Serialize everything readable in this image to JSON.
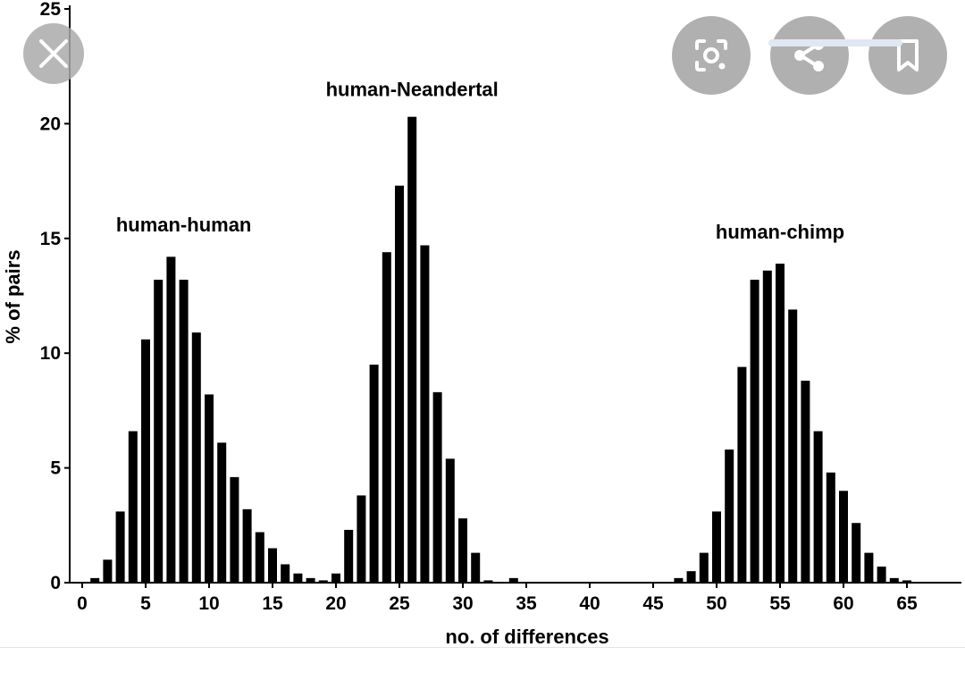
{
  "viewer": {
    "close_icon": "close-icon",
    "lens_icon": "lens-search-icon",
    "share_icon": "share-icon",
    "bookmark_icon": "bookmark-icon",
    "button_color": "#9a9a9a"
  },
  "chart_data": {
    "type": "bar",
    "title": "",
    "xlabel": "no. of differences",
    "ylabel": "% of pairs",
    "xlim": [
      -0.5,
      69.5
    ],
    "ylim": [
      0,
      25
    ],
    "xticks": [
      "0",
      "5",
      "10",
      "15",
      "20",
      "25",
      "30",
      "35",
      "40",
      "45",
      "50",
      "55",
      "60",
      "65"
    ],
    "yticks": [
      "0",
      "5",
      "10",
      "15",
      "20",
      "25"
    ],
    "grid": false,
    "bar_color": "#000000",
    "annotations": [
      {
        "text": "human-human",
        "x": 8,
        "y": 15.3
      },
      {
        "text": "human-Neandertal",
        "x": 26,
        "y": 21.2
      },
      {
        "text": "human-chimp",
        "x": 55,
        "y": 15.0
      }
    ],
    "series": [
      {
        "name": "human-human",
        "x": [
          1,
          2,
          3,
          4,
          5,
          6,
          7,
          8,
          9,
          10,
          11,
          12,
          13,
          14,
          15,
          16,
          17,
          18,
          19,
          20
        ],
        "values": [
          0.2,
          1.0,
          3.1,
          6.6,
          10.6,
          13.2,
          14.2,
          13.2,
          10.9,
          8.2,
          6.1,
          4.6,
          3.2,
          2.2,
          1.5,
          0.8,
          0.4,
          0.2,
          0.1,
          0.4
        ]
      },
      {
        "name": "human-Neandertal",
        "x": [
          21,
          22,
          23,
          24,
          25,
          26,
          27,
          28,
          29,
          30,
          31,
          32,
          34
        ],
        "values": [
          2.3,
          3.8,
          9.5,
          14.4,
          17.3,
          20.3,
          14.7,
          8.3,
          5.4,
          2.8,
          1.3,
          0.1,
          0.2
        ]
      },
      {
        "name": "human-chimp",
        "x": [
          47,
          48,
          49,
          50,
          51,
          52,
          53,
          54,
          55,
          56,
          57,
          58,
          59,
          60,
          61,
          62,
          63,
          64,
          65
        ],
        "values": [
          0.2,
          0.5,
          1.3,
          3.1,
          5.8,
          9.4,
          13.2,
          13.6,
          13.9,
          11.9,
          8.8,
          6.6,
          4.8,
          4.0,
          2.6,
          1.3,
          0.7,
          0.2,
          0.1
        ]
      }
    ]
  }
}
